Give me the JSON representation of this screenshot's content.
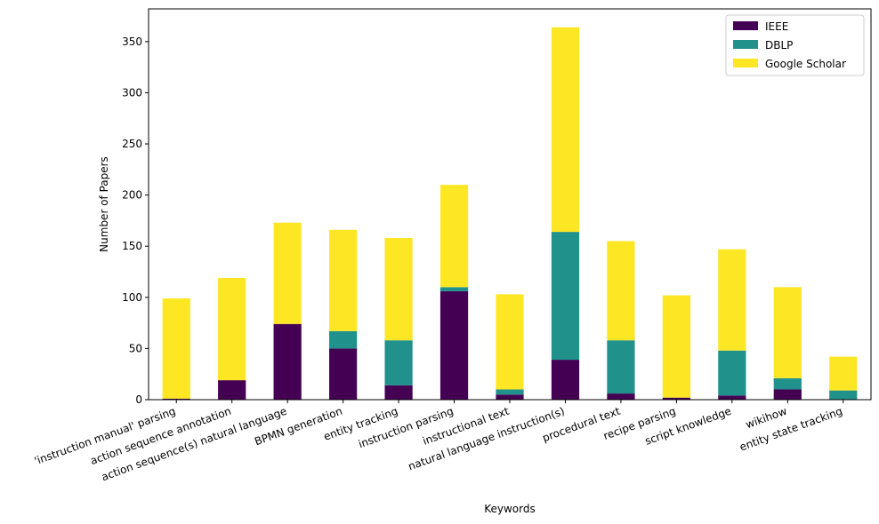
{
  "chart_data": {
    "type": "bar",
    "stacked": true,
    "title": "",
    "xlabel": "Keywords",
    "ylabel": "Number of Papers",
    "ylim": [
      0,
      382
    ],
    "yticks": [
      0,
      50,
      100,
      150,
      200,
      250,
      300,
      350
    ],
    "legend_position": "top-right",
    "categories": [
      "'instruction manual' parsing",
      "action sequence annotation",
      "action sequence(s) natural language",
      "BPMN generation",
      "entity tracking",
      "instruction parsing",
      "instructional text",
      "natural language instruction(s)",
      "procedural text",
      "recipe parsing",
      "script knowledge",
      "wikihow",
      "entity state tracking"
    ],
    "series": [
      {
        "name": "IEEE",
        "color": "#440154",
        "values": [
          1,
          19,
          74,
          50,
          14,
          106,
          5,
          39,
          6,
          2,
          4,
          10,
          0
        ]
      },
      {
        "name": "DBLP",
        "color": "#21918c",
        "values": [
          0,
          0,
          0,
          17,
          44,
          4,
          5,
          125,
          52,
          0,
          44,
          11,
          9
        ]
      },
      {
        "name": "Google Scholar",
        "color": "#fde725",
        "values": [
          98,
          100,
          99,
          99,
          100,
          100,
          93,
          200,
          97,
          100,
          99,
          89,
          33
        ]
      }
    ]
  }
}
